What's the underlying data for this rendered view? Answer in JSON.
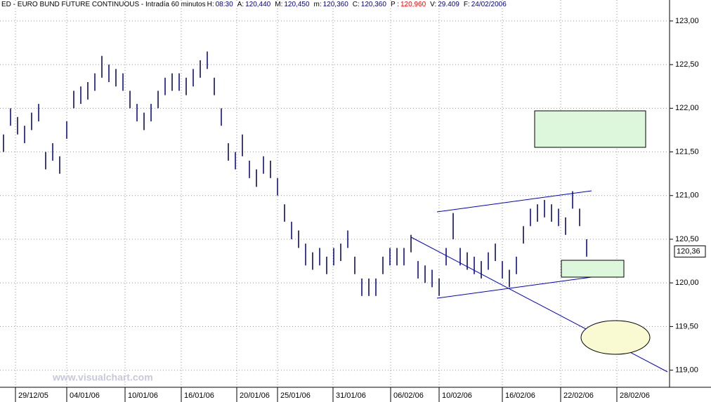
{
  "chart_data": {
    "type": "ohlc",
    "title": "ED - EURO BUND FUTURE CONTINUOUS - Intradía 60 minutos",
    "info": [
      {
        "label": "H:",
        "value": "08:30",
        "color": "#000080"
      },
      {
        "label": "A:",
        "value": "120,440",
        "color": "#000080"
      },
      {
        "label": "M:",
        "value": "120,450",
        "color": "#000080"
      },
      {
        "label": "m:",
        "value": "120,360",
        "color": "#000080"
      },
      {
        "label": "C:",
        "value": "120,360",
        "color": "#000080"
      },
      {
        "label": "P :",
        "value": "120,960",
        "color": "#ff0000"
      },
      {
        "label": "V:",
        "value": "29.409",
        "color": "#000080"
      },
      {
        "label": "F:",
        "value": "24/02/2006",
        "color": "#000080"
      }
    ],
    "watermark": "www.visualchart.com",
    "color": "#000040",
    "high": [
      121.7,
      122.0,
      121.9,
      121.8,
      121.95,
      122.05,
      121.5,
      121.6,
      121.45,
      121.85,
      122.2,
      122.25,
      122.3,
      122.4,
      122.6,
      122.5,
      122.45,
      122.4,
      122.2,
      122.05,
      121.95,
      122.05,
      122.2,
      122.35,
      122.4,
      122.4,
      122.35,
      122.45,
      122.55,
      122.65,
      122.35,
      122.0,
      121.6,
      121.5,
      121.7,
      121.4,
      121.3,
      121.45,
      121.4,
      121.2,
      120.9,
      120.7,
      120.6,
      120.45,
      120.35,
      120.4,
      120.3,
      120.4,
      120.45,
      120.6,
      120.3,
      120.05,
      120.05,
      120.05,
      120.3,
      120.4,
      120.4,
      120.4,
      120.55,
      120.25,
      120.2,
      120.15,
      120.05,
      120.4,
      120.8,
      120.4,
      120.35,
      120.3,
      120.25,
      120.35,
      120.45,
      120.25,
      120.15,
      120.3,
      120.65,
      120.85,
      120.9,
      120.95,
      120.9,
      120.85,
      120.75,
      121.05,
      120.85,
      120.5
    ],
    "low": [
      121.5,
      121.8,
      121.7,
      121.6,
      121.75,
      121.85,
      121.3,
      121.4,
      121.25,
      121.65,
      122.0,
      122.05,
      122.1,
      122.2,
      122.35,
      122.3,
      122.25,
      122.2,
      122.0,
      121.85,
      121.75,
      121.85,
      122.0,
      122.15,
      122.2,
      122.2,
      122.15,
      122.25,
      122.35,
      122.45,
      122.15,
      121.8,
      121.4,
      121.3,
      121.45,
      121.2,
      121.1,
      121.25,
      121.2,
      121.0,
      120.7,
      120.5,
      120.4,
      120.2,
      120.15,
      120.2,
      120.1,
      120.2,
      120.25,
      120.4,
      120.1,
      119.85,
      119.85,
      119.85,
      120.1,
      120.2,
      120.2,
      120.2,
      120.35,
      120.05,
      120.0,
      119.95,
      119.85,
      120.2,
      120.5,
      120.2,
      120.15,
      120.1,
      120.05,
      120.15,
      120.25,
      120.05,
      119.95,
      120.1,
      120.45,
      120.65,
      120.7,
      120.75,
      120.7,
      120.65,
      120.55,
      120.85,
      120.65,
      120.3
    ],
    "xlim": [
      0,
      94.5
    ],
    "xticks": [
      {
        "value": 1.7,
        "label": "29/12/05"
      },
      {
        "value": 9.0,
        "label": "04/01/06"
      },
      {
        "value": 17.3,
        "label": "10/01/06"
      },
      {
        "value": 25.3,
        "label": "16/01/06"
      },
      {
        "value": 33.2,
        "label": "20/01/06"
      },
      {
        "value": 39.0,
        "label": "25/01/06"
      },
      {
        "value": 46.9,
        "label": "31/01/06"
      },
      {
        "value": 55.1,
        "label": "06/02/06"
      },
      {
        "value": 62.0,
        "label": "10/02/06"
      },
      {
        "value": 71.0,
        "label": "16/02/06"
      },
      {
        "value": 79.3,
        "label": "22/02/06"
      },
      {
        "value": 87.3,
        "label": "28/02/06"
      }
    ],
    "ylim": [
      118.78,
      123.2
    ],
    "yticks": [
      {
        "value": 119,
        "label": "119,00"
      },
      {
        "value": 119.5,
        "label": "119,50"
      },
      {
        "value": 120,
        "label": "120,00"
      },
      {
        "value": 120.5,
        "label": "120,50"
      },
      {
        "value": 121,
        "label": "121,00"
      },
      {
        "value": 121.5,
        "label": "121,50"
      },
      {
        "value": 122,
        "label": "122,00"
      },
      {
        "value": 122.5,
        "label": "122,50"
      },
      {
        "value": 123,
        "label": "123,00"
      }
    ],
    "last_price": {
      "value": 120.36,
      "label": "120,36"
    },
    "grid": true
  }
}
